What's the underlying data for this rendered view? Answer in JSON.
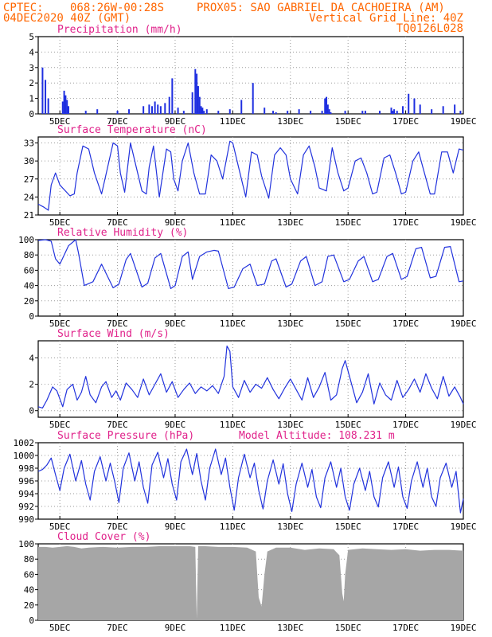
{
  "header": {
    "left_line1": "CPTEC:",
    "coords": "068:26W-00:28S",
    "station": "PROX05: SAO GABRIEL DA CACHOEIRA (AM)",
    "left_line2": "04DEC2020 40Z (GMT)",
    "grid_note": "Vertical Grid Line: 40Z",
    "model_code": "TQ0126L028"
  },
  "colors": {
    "header": "#ff6600",
    "title": "#e0218a",
    "line": "#2233dd",
    "bar": "#1f2fe0",
    "cloud": "#a6a6a6",
    "grid": "#9a9a9a"
  },
  "chart_data": [
    {
      "type": "bar",
      "title": "Precipitation (mm/h)",
      "ylim": [
        0,
        5
      ],
      "yticks": [
        "0",
        "1",
        "2",
        "3",
        "4",
        "5"
      ],
      "xticks": [
        "5DEC",
        "7DEC",
        "9DEC",
        "11DEC",
        "13DEC",
        "15DEC",
        "17DEC",
        "19DEC"
      ],
      "xlim_days": [
        4.25,
        19.0
      ],
      "x": [
        4.4,
        4.5,
        4.6,
        5.1,
        5.15,
        5.2,
        5.25,
        5.3,
        5.9,
        6.3,
        7.0,
        7.4,
        7.9,
        8.1,
        8.2,
        8.3,
        8.4,
        8.5,
        8.65,
        8.8,
        8.9,
        9.1,
        9.3,
        9.6,
        9.7,
        9.75,
        9.8,
        9.85,
        9.9,
        9.95,
        10.0,
        10.1,
        10.5,
        10.9,
        11.3,
        11.7,
        12.1,
        12.4,
        12.5,
        12.9,
        13.3,
        13.7,
        14.1,
        14.2,
        14.25,
        14.3,
        14.35,
        14.4,
        14.9,
        15.5,
        15.6,
        16.1,
        16.5,
        16.55,
        16.6,
        16.7,
        16.9,
        17.1,
        17.3,
        17.5,
        17.9,
        18.3,
        18.7,
        18.9
      ],
      "values": [
        3.0,
        2.2,
        1.0,
        0.8,
        1.5,
        1.2,
        0.9,
        0.5,
        0.2,
        0.3,
        0.2,
        0.3,
        0.5,
        0.6,
        0.5,
        0.8,
        0.6,
        0.5,
        0.7,
        1.1,
        2.3,
        0.4,
        0.2,
        1.4,
        2.9,
        2.6,
        1.8,
        1.1,
        0.5,
        0.4,
        0.2,
        0.3,
        0.2,
        0.3,
        0.9,
        2.0,
        0.4,
        0.2,
        0.1,
        0.2,
        0.3,
        0.2,
        0.2,
        1.0,
        1.1,
        0.6,
        0.3,
        0.1,
        0.2,
        0.2,
        0.2,
        0.2,
        0.4,
        0.2,
        0.3,
        0.2,
        0.5,
        1.3,
        1.0,
        0.6,
        0.3,
        0.5,
        0.6,
        0.2
      ]
    },
    {
      "type": "line",
      "title": "Surface Temperature (nC)",
      "ylim": [
        21,
        34
      ],
      "yticks": [
        "21",
        "24",
        "27",
        "30",
        "33"
      ],
      "xticks": [
        "5DEC",
        "7DEC",
        "9DEC",
        "11DEC",
        "13DEC",
        "15DEC",
        "17DEC",
        "19DEC"
      ],
      "xlim_days": [
        4.25,
        19.0
      ],
      "x": [
        4.25,
        4.45,
        4.6,
        4.7,
        4.85,
        5.0,
        5.35,
        5.5,
        5.6,
        5.8,
        6.0,
        6.2,
        6.45,
        6.85,
        7.0,
        7.1,
        7.25,
        7.45,
        7.65,
        7.85,
        8.0,
        8.1,
        8.25,
        8.45,
        8.7,
        8.85,
        8.95,
        9.1,
        9.25,
        9.45,
        9.65,
        9.85,
        10.05,
        10.25,
        10.45,
        10.65,
        10.9,
        11.0,
        11.2,
        11.45,
        11.65,
        11.85,
        12.0,
        12.25,
        12.45,
        12.65,
        12.85,
        13.0,
        13.25,
        13.45,
        13.65,
        13.85,
        14.0,
        14.25,
        14.45,
        14.65,
        14.85,
        15.0,
        15.25,
        15.45,
        15.65,
        15.85,
        16.0,
        16.25,
        16.45,
        16.65,
        16.85,
        17.0,
        17.25,
        17.45,
        17.65,
        17.85,
        18.0,
        18.25,
        18.45,
        18.65,
        18.85,
        19.0
      ],
      "values": [
        22.8,
        22.3,
        21.8,
        26.0,
        28.0,
        26.0,
        24.2,
        24.5,
        28.0,
        32.5,
        32.0,
        28.0,
        24.5,
        33.0,
        32.5,
        28.0,
        24.8,
        33.0,
        29.0,
        25.0,
        24.5,
        29.0,
        32.5,
        24.0,
        32.0,
        31.5,
        27.0,
        25.0,
        30.0,
        33.0,
        28.0,
        24.5,
        24.5,
        31.0,
        30.0,
        27.0,
        33.3,
        33.0,
        29.0,
        24.0,
        31.5,
        31.0,
        27.5,
        23.8,
        31.0,
        32.2,
        31.0,
        27.0,
        24.5,
        31.0,
        32.5,
        29.0,
        25.5,
        25.0,
        32.2,
        28.0,
        25.0,
        25.5,
        30.0,
        30.5,
        28.0,
        24.5,
        24.8,
        30.5,
        31.0,
        28.0,
        24.5,
        24.8,
        30.0,
        31.5,
        28.0,
        24.5,
        24.5,
        31.5,
        31.5,
        28.0,
        32.0,
        31.8
      ]
    },
    {
      "type": "line",
      "title": "Relative Humidity (%)",
      "ylim": [
        0,
        100
      ],
      "yticks": [
        "0",
        "20",
        "40",
        "60",
        "80",
        "100"
      ],
      "xticks": [
        "5DEC",
        "7DEC",
        "9DEC",
        "11DEC",
        "13DEC",
        "15DEC",
        "17DEC",
        "19DEC"
      ],
      "xlim_days": [
        4.25,
        19.0
      ],
      "x": [
        4.25,
        4.5,
        4.7,
        4.85,
        5.0,
        5.3,
        5.55,
        5.65,
        5.85,
        6.15,
        6.45,
        6.85,
        7.05,
        7.3,
        7.45,
        7.85,
        8.05,
        8.3,
        8.5,
        8.85,
        9.0,
        9.25,
        9.45,
        9.6,
        9.85,
        10.1,
        10.35,
        10.5,
        10.85,
        11.05,
        11.35,
        11.6,
        11.85,
        12.1,
        12.35,
        12.5,
        12.85,
        13.05,
        13.35,
        13.55,
        13.85,
        14.1,
        14.3,
        14.5,
        14.85,
        15.05,
        15.35,
        15.55,
        15.85,
        16.05,
        16.35,
        16.55,
        16.85,
        17.05,
        17.35,
        17.55,
        17.85,
        18.05,
        18.35,
        18.55,
        18.85,
        19.0
      ],
      "values": [
        99,
        100,
        98,
        75,
        68,
        92,
        100,
        82,
        40,
        45,
        68,
        37,
        42,
        74,
        82,
        38,
        43,
        76,
        82,
        36,
        40,
        78,
        84,
        48,
        78,
        84,
        86,
        85,
        36,
        38,
        62,
        68,
        40,
        42,
        72,
        75,
        38,
        42,
        72,
        78,
        40,
        45,
        78,
        80,
        45,
        48,
        72,
        78,
        45,
        48,
        78,
        82,
        48,
        52,
        88,
        90,
        50,
        52,
        90,
        91,
        45,
        46
      ]
    },
    {
      "type": "line",
      "title": "Surface Wind (m/s)",
      "ylim": [
        -0.5,
        5.3
      ],
      "yticks": [
        "0",
        "2",
        "4"
      ],
      "xticks": [
        "5DEC",
        "7DEC",
        "9DEC",
        "11DEC",
        "13DEC",
        "15DEC",
        "17DEC",
        "19DEC"
      ],
      "xlim_days": [
        4.25,
        19.0
      ],
      "x": [
        4.25,
        4.4,
        4.55,
        4.75,
        4.9,
        5.1,
        5.25,
        5.45,
        5.6,
        5.75,
        5.9,
        6.05,
        6.25,
        6.45,
        6.6,
        6.8,
        6.95,
        7.1,
        7.3,
        7.5,
        7.7,
        7.9,
        8.1,
        8.3,
        8.5,
        8.7,
        8.9,
        9.1,
        9.3,
        9.5,
        9.7,
        9.9,
        10.1,
        10.3,
        10.5,
        10.7,
        10.8,
        10.9,
        11.0,
        11.2,
        11.4,
        11.6,
        11.8,
        12.0,
        12.2,
        12.4,
        12.6,
        12.8,
        13.0,
        13.2,
        13.4,
        13.6,
        13.8,
        14.0,
        14.2,
        14.4,
        14.6,
        14.8,
        14.9,
        15.1,
        15.3,
        15.5,
        15.7,
        15.9,
        16.1,
        16.3,
        16.5,
        16.7,
        16.9,
        17.1,
        17.3,
        17.5,
        17.7,
        17.9,
        18.1,
        18.3,
        18.5,
        18.7,
        18.9,
        19.0
      ],
      "values": [
        0.3,
        0.2,
        0.8,
        1.8,
        1.5,
        0.3,
        1.6,
        2.0,
        0.8,
        1.4,
        2.6,
        1.2,
        0.6,
        1.8,
        2.2,
        1.0,
        1.5,
        0.8,
        2.1,
        1.6,
        1.0,
        2.4,
        1.2,
        2.0,
        2.8,
        1.4,
        2.2,
        1.0,
        1.6,
        2.1,
        1.3,
        1.8,
        1.5,
        1.9,
        1.3,
        2.6,
        4.9,
        4.5,
        1.8,
        1.0,
        2.3,
        1.4,
        2.0,
        1.7,
        2.5,
        1.6,
        0.9,
        1.7,
        2.4,
        1.6,
        0.8,
        2.5,
        1.0,
        1.8,
        2.9,
        0.8,
        1.2,
        3.2,
        3.8,
        2.2,
        0.6,
        1.4,
        2.8,
        0.5,
        2.1,
        1.2,
        0.8,
        2.3,
        1.0,
        1.6,
        2.4,
        1.4,
        2.8,
        1.7,
        0.9,
        2.6,
        1.1,
        1.8,
        1.0,
        0.5
      ]
    },
    {
      "type": "line",
      "title": "Surface Pressure (hPa)",
      "annotation": "Model Altitude: 108.231 m",
      "ylim": [
        990,
        1002
      ],
      "yticks": [
        "990",
        "992",
        "994",
        "996",
        "998",
        "1000",
        "1002"
      ],
      "xticks": [
        "5DEC",
        "7DEC",
        "9DEC",
        "11DEC",
        "13DEC",
        "15DEC",
        "17DEC",
        "19DEC"
      ],
      "xlim_days": [
        4.25,
        19.0
      ],
      "x": [
        4.25,
        4.4,
        4.55,
        4.7,
        4.85,
        5.0,
        5.15,
        5.35,
        5.55,
        5.75,
        5.9,
        6.05,
        6.2,
        6.4,
        6.6,
        6.75,
        6.9,
        7.05,
        7.2,
        7.4,
        7.6,
        7.75,
        7.9,
        8.05,
        8.2,
        8.4,
        8.6,
        8.75,
        8.9,
        9.05,
        9.2,
        9.4,
        9.6,
        9.75,
        9.9,
        10.05,
        10.2,
        10.4,
        10.6,
        10.75,
        10.9,
        11.05,
        11.2,
        11.4,
        11.6,
        11.75,
        11.9,
        12.05,
        12.2,
        12.4,
        12.6,
        12.75,
        12.9,
        13.05,
        13.2,
        13.4,
        13.6,
        13.75,
        13.9,
        14.05,
        14.2,
        14.4,
        14.6,
        14.75,
        14.9,
        15.05,
        15.2,
        15.4,
        15.6,
        15.75,
        15.9,
        16.05,
        16.2,
        16.4,
        16.6,
        16.75,
        16.9,
        17.05,
        17.2,
        17.4,
        17.6,
        17.75,
        17.9,
        18.05,
        18.2,
        18.4,
        18.6,
        18.75,
        18.9,
        19.0
      ],
      "values": [
        997.5,
        997.8,
        998.5,
        999.6,
        997.0,
        994.5,
        998.0,
        1000.2,
        996.0,
        999.2,
        995.5,
        993.0,
        997.5,
        999.8,
        996.0,
        998.8,
        996.0,
        992.6,
        998.0,
        1000.4,
        996.0,
        999.0,
        995.0,
        992.5,
        998.5,
        1000.5,
        996.5,
        999.5,
        995.5,
        993.0,
        999.0,
        1001.0,
        997.0,
        1000.3,
        996.0,
        993.0,
        998.0,
        1001.0,
        997.0,
        999.6,
        995.0,
        991.4,
        996.5,
        1000.2,
        996.5,
        998.8,
        994.5,
        991.6,
        996.0,
        999.3,
        995.5,
        998.7,
        994.0,
        991.2,
        995.5,
        998.8,
        995.0,
        997.8,
        993.5,
        991.8,
        996.5,
        999.0,
        995.0,
        998.0,
        993.5,
        991.4,
        995.5,
        998.0,
        994.5,
        997.5,
        993.5,
        991.9,
        996.5,
        999.0,
        995.0,
        998.2,
        993.5,
        991.7,
        996.0,
        999.0,
        995.0,
        998.0,
        993.5,
        992.0,
        996.5,
        998.8,
        995.0,
        997.5,
        991.0,
        993.2
      ]
    },
    {
      "type": "area",
      "title": "Cloud Cover (%)",
      "ylim": [
        0,
        100
      ],
      "yticks": [
        "0",
        "20",
        "40",
        "60",
        "80",
        "100"
      ],
      "xticks": [
        "5DEC",
        "7DEC",
        "9DEC",
        "11DEC",
        "13DEC",
        "15DEC",
        "17DEC",
        "19DEC"
      ],
      "xlim_days": [
        4.25,
        19.0
      ],
      "x": [
        4.25,
        4.5,
        4.75,
        5.0,
        5.25,
        5.5,
        5.75,
        6.0,
        6.5,
        7.0,
        7.5,
        8.0,
        8.5,
        9.0,
        9.5,
        9.7,
        9.75,
        9.8,
        10.0,
        10.5,
        11.0,
        11.5,
        11.8,
        11.9,
        12.0,
        12.1,
        12.2,
        12.5,
        13.0,
        13.5,
        14.0,
        14.5,
        14.7,
        14.8,
        14.85,
        14.9,
        15.0,
        15.5,
        16.0,
        16.5,
        17.0,
        17.5,
        18.0,
        18.5,
        19.0
      ],
      "values": [
        96,
        96,
        95,
        96,
        97,
        96,
        94,
        95,
        96,
        95,
        96,
        96,
        97,
        97,
        97,
        96,
        2,
        97,
        97,
        96,
        96,
        95,
        90,
        30,
        18,
        60,
        90,
        95,
        95,
        92,
        94,
        93,
        85,
        35,
        25,
        60,
        92,
        94,
        93,
        92,
        93,
        91,
        92,
        92,
        91
      ]
    }
  ]
}
